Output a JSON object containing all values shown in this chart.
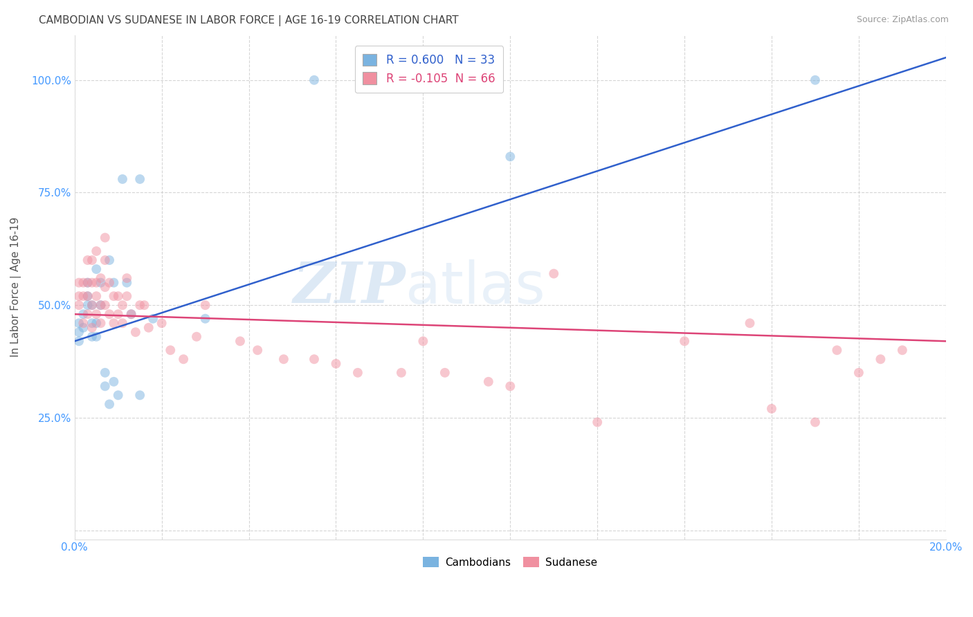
{
  "title": "CAMBODIAN VS SUDANESE IN LABOR FORCE | AGE 16-19 CORRELATION CHART",
  "source": "Source: ZipAtlas.com",
  "ylabel": "In Labor Force | Age 16-19",
  "xlim": [
    0.0,
    0.2
  ],
  "ylim": [
    -0.02,
    1.1
  ],
  "ytick_values": [
    0.0,
    0.25,
    0.5,
    0.75,
    1.0
  ],
  "ytick_labels": [
    "",
    "25.0%",
    "50.0%",
    "75.0%",
    "100.0%"
  ],
  "xtick_values": [
    0.0,
    0.02,
    0.04,
    0.06,
    0.08,
    0.1,
    0.12,
    0.14,
    0.16,
    0.18,
    0.2
  ],
  "xtick_labels": [
    "0.0%",
    "",
    "",
    "",
    "",
    "",
    "",
    "",
    "",
    "",
    "20.0%"
  ],
  "legend_R_cambodian": "0.600",
  "legend_N_cambodian": "33",
  "legend_R_sudanese": "-0.105",
  "legend_N_sudanese": "66",
  "cambodian_color": "#7ab3e0",
  "sudanese_color": "#f090a0",
  "trend_cambodian_color": "#3060cc",
  "trend_sudanese_color": "#dd4477",
  "watermark_color": "#c8ddf5",
  "background_color": "#ffffff",
  "grid_color": "#cccccc",
  "grid_linestyle": "--",
  "grid_alpha": 0.8,
  "title_color": "#444444",
  "axis_color": "#4499ff",
  "source_color": "#999999",
  "marker_size": 100,
  "marker_alpha": 0.5,
  "trend_linewidth": 1.8,
  "cambodian_x": [
    0.001,
    0.001,
    0.001,
    0.002,
    0.002,
    0.003,
    0.003,
    0.003,
    0.004,
    0.004,
    0.004,
    0.005,
    0.005,
    0.005,
    0.006,
    0.006,
    0.007,
    0.007,
    0.008,
    0.008,
    0.009,
    0.009,
    0.01,
    0.011,
    0.012,
    0.013,
    0.015,
    0.015,
    0.018,
    0.03,
    0.055,
    0.1,
    0.17
  ],
  "cambodian_y": [
    0.44,
    0.46,
    0.42,
    0.45,
    0.48,
    0.5,
    0.52,
    0.55,
    0.43,
    0.46,
    0.5,
    0.43,
    0.46,
    0.58,
    0.5,
    0.55,
    0.32,
    0.35,
    0.28,
    0.6,
    0.33,
    0.55,
    0.3,
    0.78,
    0.55,
    0.48,
    0.3,
    0.78,
    0.47,
    0.47,
    1.0,
    0.83,
    1.0
  ],
  "sudanese_x": [
    0.001,
    0.001,
    0.001,
    0.002,
    0.002,
    0.002,
    0.003,
    0.003,
    0.003,
    0.003,
    0.004,
    0.004,
    0.004,
    0.004,
    0.005,
    0.005,
    0.005,
    0.005,
    0.006,
    0.006,
    0.006,
    0.007,
    0.007,
    0.007,
    0.007,
    0.008,
    0.008,
    0.009,
    0.009,
    0.01,
    0.01,
    0.011,
    0.011,
    0.012,
    0.012,
    0.013,
    0.014,
    0.015,
    0.016,
    0.017,
    0.02,
    0.022,
    0.025,
    0.028,
    0.03,
    0.038,
    0.042,
    0.048,
    0.055,
    0.06,
    0.065,
    0.075,
    0.08,
    0.085,
    0.095,
    0.1,
    0.11,
    0.12,
    0.14,
    0.155,
    0.16,
    0.17,
    0.175,
    0.18,
    0.185,
    0.19
  ],
  "sudanese_y": [
    0.5,
    0.52,
    0.55,
    0.46,
    0.52,
    0.55,
    0.48,
    0.52,
    0.55,
    0.6,
    0.45,
    0.5,
    0.55,
    0.6,
    0.48,
    0.52,
    0.55,
    0.62,
    0.46,
    0.5,
    0.56,
    0.5,
    0.54,
    0.6,
    0.65,
    0.48,
    0.55,
    0.46,
    0.52,
    0.48,
    0.52,
    0.46,
    0.5,
    0.52,
    0.56,
    0.48,
    0.44,
    0.5,
    0.5,
    0.45,
    0.46,
    0.4,
    0.38,
    0.43,
    0.5,
    0.42,
    0.4,
    0.38,
    0.38,
    0.37,
    0.35,
    0.35,
    0.42,
    0.35,
    0.33,
    0.32,
    0.57,
    0.24,
    0.42,
    0.46,
    0.27,
    0.24,
    0.4,
    0.35,
    0.38,
    0.4
  ],
  "trend_cambodian_x0": 0.0,
  "trend_cambodian_y0": 0.42,
  "trend_cambodian_x1": 0.2,
  "trend_cambodian_y1": 1.05,
  "trend_sudanese_x0": 0.0,
  "trend_sudanese_y0": 0.48,
  "trend_sudanese_x1": 0.2,
  "trend_sudanese_y1": 0.42
}
